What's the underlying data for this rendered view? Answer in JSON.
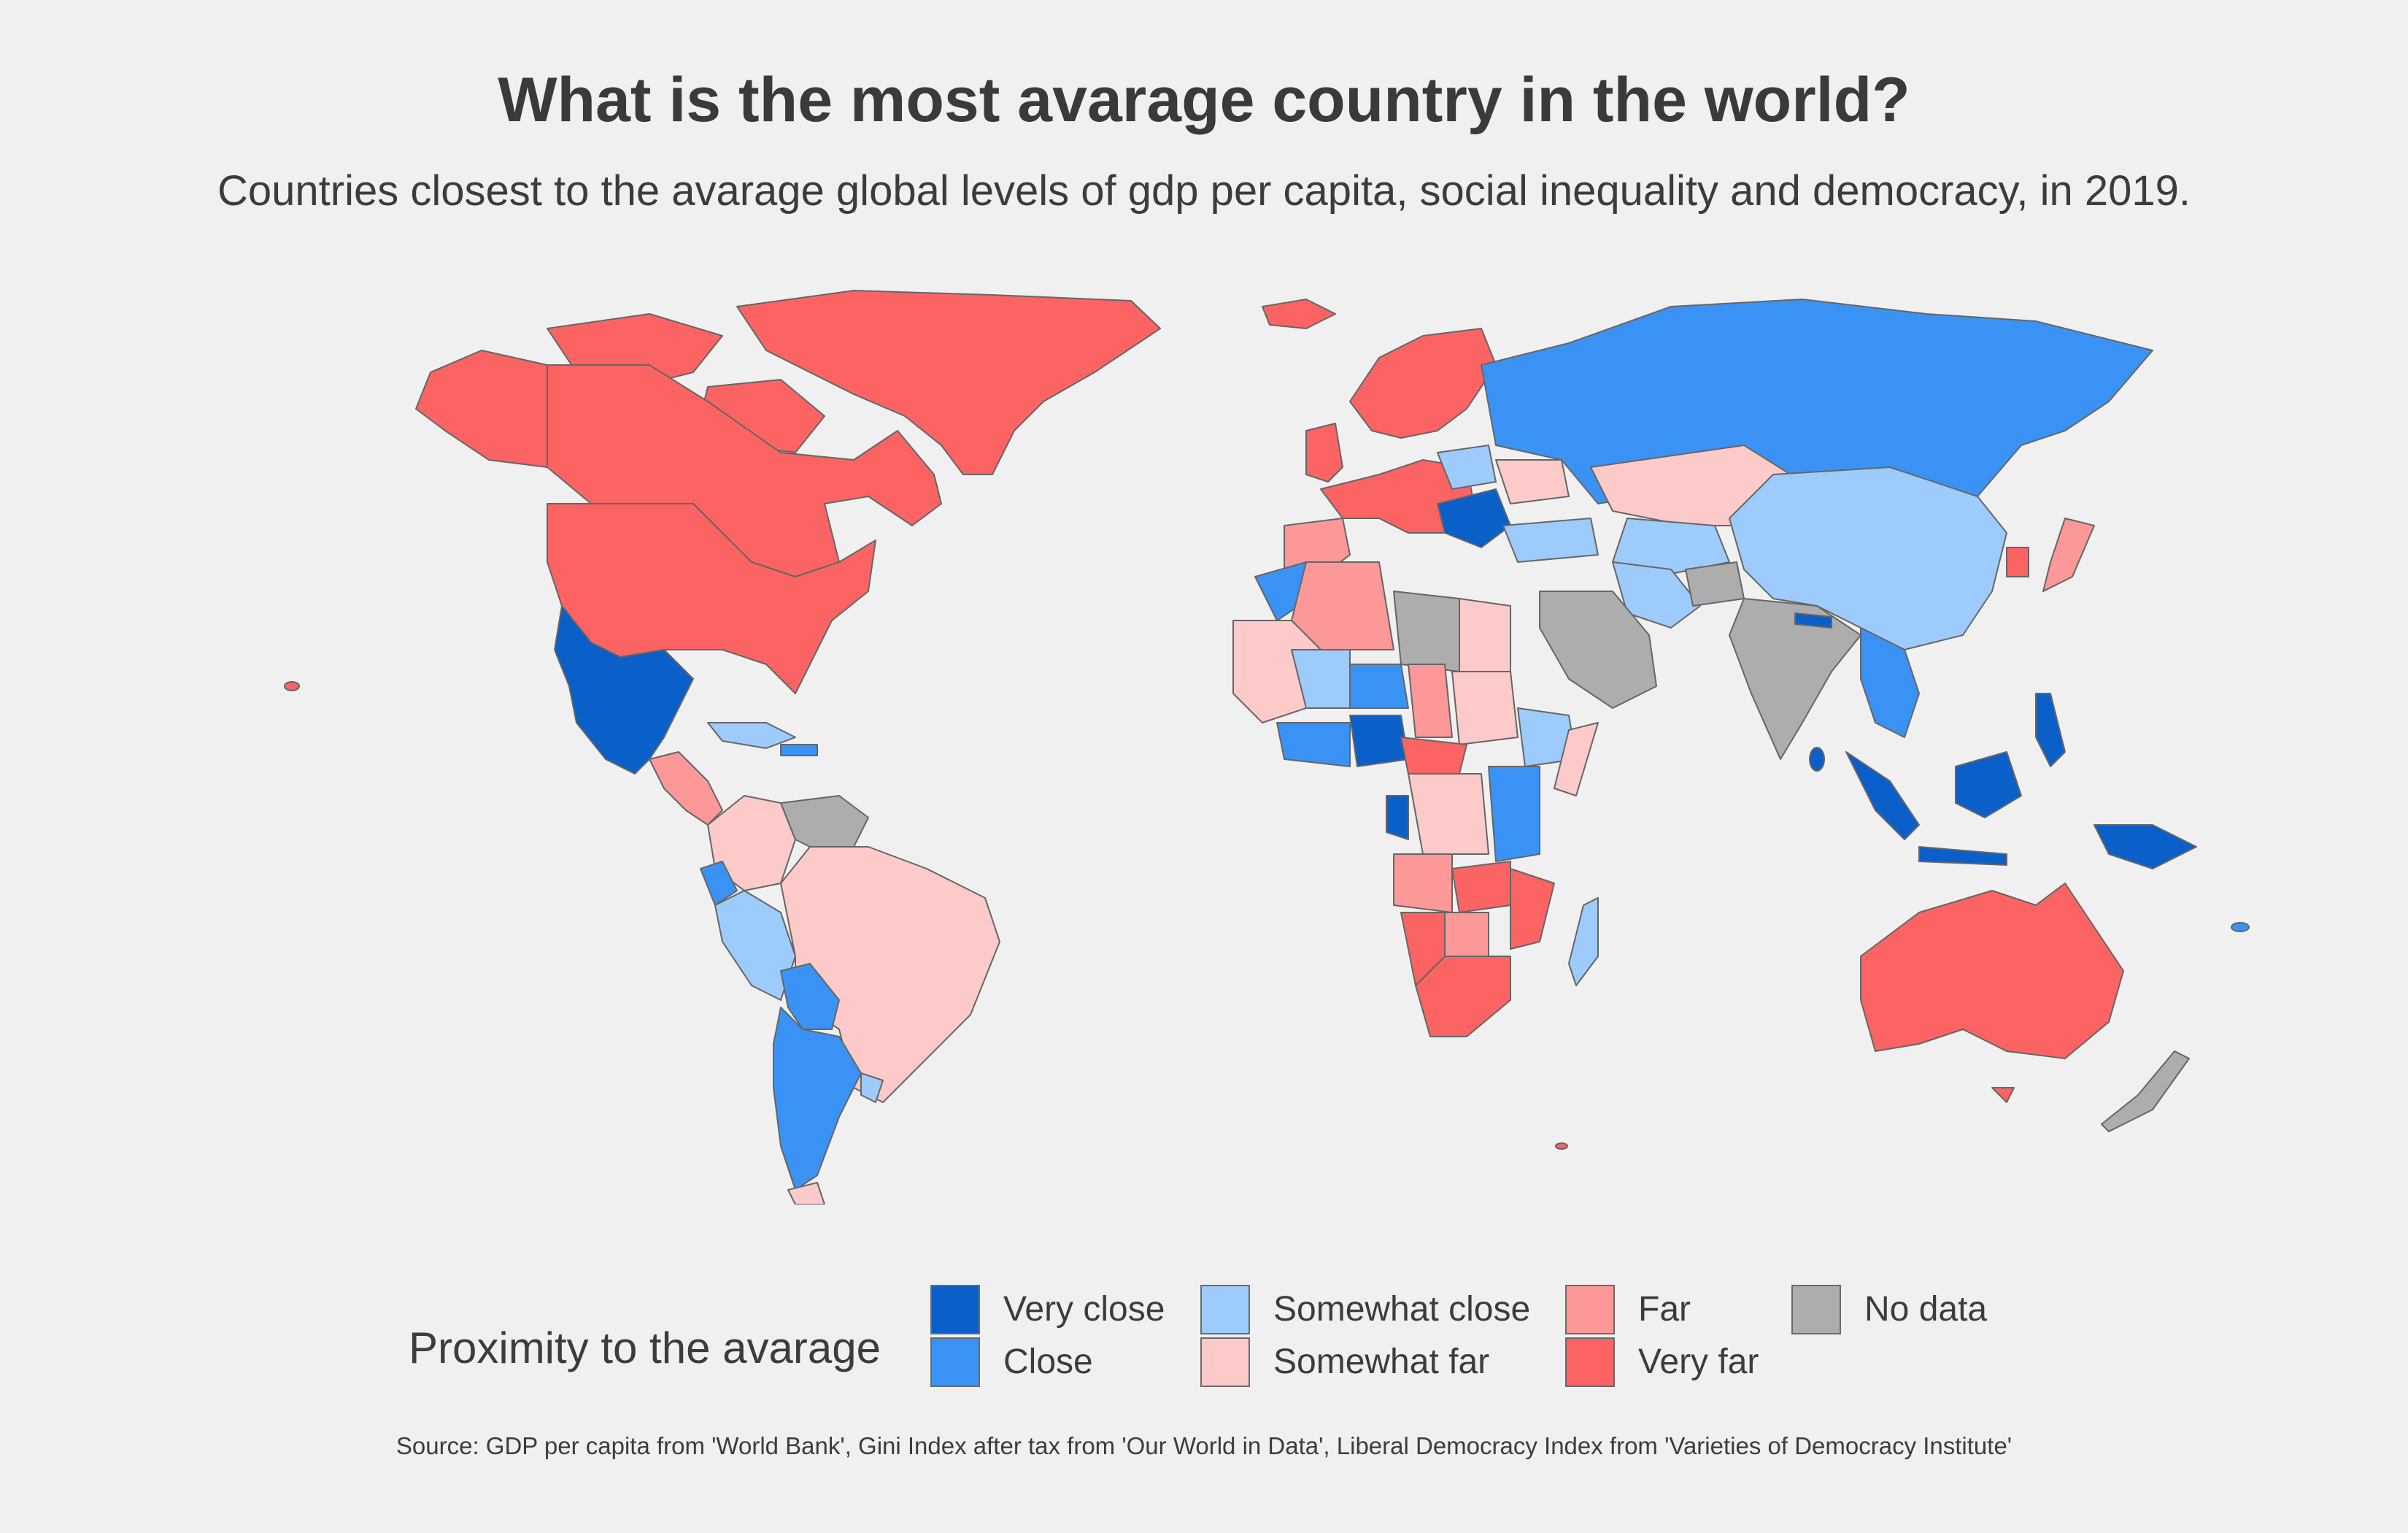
{
  "title": "What is the most avarage country in the world?",
  "subtitle": "Countries closest to the avarage global levels of gdp per capita, social inequality and democracy, in 2019.",
  "legend": {
    "title": "Proximity to the avarage",
    "items": [
      {
        "key": "very_close",
        "label": "Very close",
        "color": "#0a5fc8"
      },
      {
        "key": "close",
        "label": "Close",
        "color": "#3a93f4"
      },
      {
        "key": "somewhat_close",
        "label": "Somewhat close",
        "color": "#9dcbfc"
      },
      {
        "key": "somewhat_far",
        "label": "Somewhat far",
        "color": "#fdcaca"
      },
      {
        "key": "far",
        "label": "Far",
        "color": "#fc9898"
      },
      {
        "key": "very_far",
        "label": "Very far",
        "color": "#fc6464"
      },
      {
        "key": "no_data",
        "label": "No data",
        "color": "#adadad"
      }
    ]
  },
  "source": "Source: GDP per capita from 'World Bank', Gini Index after tax from 'Our World in Data', Liberal Democracy Index from 'Varieties of Democracy Institute'"
}
